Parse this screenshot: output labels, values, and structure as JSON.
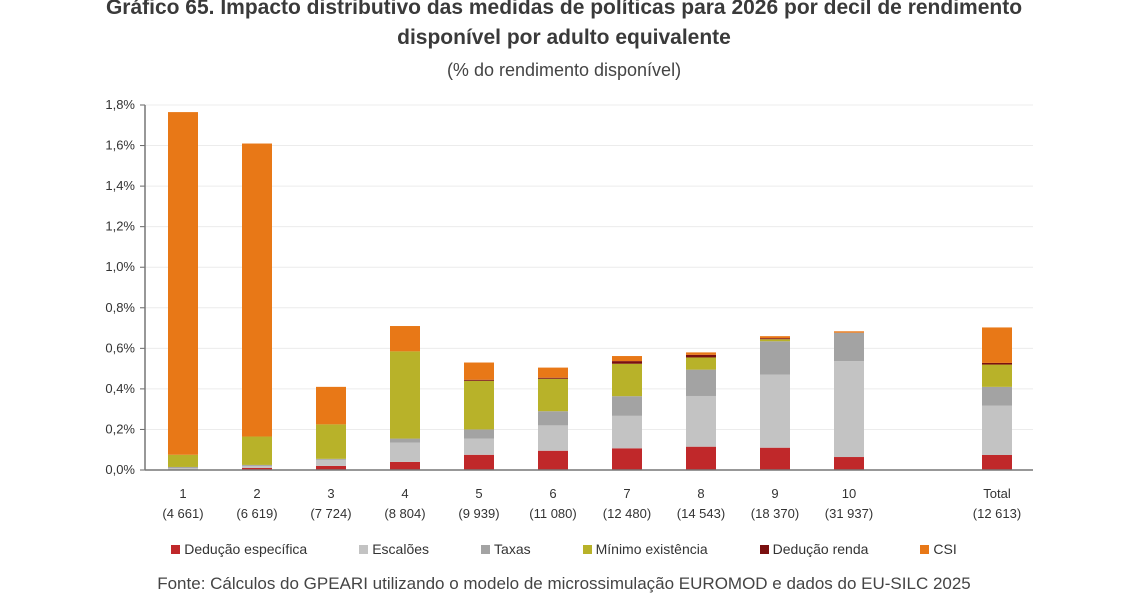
{
  "title": "Gráfico 65. Impacto distributivo das medidas de políticas para 2026 por decil de rendimento disponível por adulto equivalente",
  "title_line1": "Gráfico 65. Impacto distributivo das medidas de políticas para 2026 por decil de rendimento",
  "title_line2": "disponível por adulto equivalente",
  "subtitle": "(% do rendimento disponível)",
  "source": "Fonte: Cálculos do GPEARI utilizando o modelo de microssimulação EUROMOD e dados do EU-SILC 2025",
  "chart_data": {
    "type": "bar",
    "stacked": true,
    "title": "Gráfico 65. Impacto distributivo das medidas de políticas para 2026 por decil de rendimento disponível por adulto equivalente",
    "subtitle": "(% do rendimento disponível)",
    "ylim": [
      0,
      1.8
    ],
    "yticks": [
      "0,0%",
      "0,2%",
      "0,4%",
      "0,6%",
      "0,8%",
      "1,0%",
      "1,2%",
      "1,4%",
      "1,6%",
      "1,8%"
    ],
    "grid": true,
    "legend_position": "bottom",
    "categories": [
      "1",
      "2",
      "3",
      "4",
      "5",
      "6",
      "7",
      "8",
      "9",
      "10",
      "Total"
    ],
    "category_sublabels": [
      "(4 661)",
      "(6 619)",
      "(7 724)",
      "(8 804)",
      "(9 939)",
      "(11 080)",
      "(12 480)",
      "(14 543)",
      "(18 370)",
      "(31 937)",
      "(12 613)"
    ],
    "series": [
      {
        "name": "Dedução específica",
        "color": "#c0282a",
        "values": [
          0.0,
          0.01,
          0.02,
          0.04,
          0.075,
          0.095,
          0.107,
          0.115,
          0.11,
          0.064,
          0.074
        ]
      },
      {
        "name": "Escalões",
        "color": "#c3c3c3",
        "values": [
          0.01,
          0.01,
          0.03,
          0.095,
          0.08,
          0.125,
          0.16,
          0.25,
          0.36,
          0.473,
          0.243
        ]
      },
      {
        "name": "Taxas",
        "color": "#a3a3a3",
        "values": [
          0.005,
          0.005,
          0.005,
          0.02,
          0.045,
          0.07,
          0.097,
          0.13,
          0.165,
          0.14,
          0.093
        ]
      },
      {
        "name": "Mínimo existência",
        "color": "#b8b229",
        "values": [
          0.06,
          0.14,
          0.17,
          0.43,
          0.24,
          0.16,
          0.16,
          0.06,
          0.01,
          0.0,
          0.11
        ]
      },
      {
        "name": "Dedução renda",
        "color": "#7a0f0f",
        "values": [
          0.0,
          0.0,
          0.0,
          0.0,
          0.005,
          0.005,
          0.013,
          0.013,
          0.005,
          0.0,
          0.008
        ]
      },
      {
        "name": "CSI",
        "color": "#e87817",
        "values": [
          1.69,
          1.445,
          0.185,
          0.125,
          0.085,
          0.05,
          0.025,
          0.012,
          0.01,
          0.007,
          0.175
        ]
      }
    ]
  }
}
